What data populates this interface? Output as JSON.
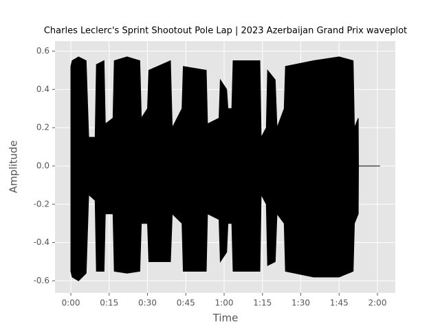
{
  "chart_data": {
    "type": "area",
    "title": "Charles Leclerc's Sprint Shootout Pole Lap | 2023 Azerbaijan Grand Prix waveplot",
    "xlabel": "Time",
    "ylabel": "Amplitude",
    "x": [
      0,
      0.5,
      3,
      6,
      7,
      9.5,
      10,
      13,
      13.5,
      16.5,
      17,
      22,
      27,
      27.6,
      30,
      30.5,
      39,
      39.7,
      43.5,
      44,
      53,
      53.5,
      58,
      58.5,
      61,
      61.5,
      63,
      63.5,
      74,
      74.5,
      76.5,
      77,
      80,
      80.7,
      83.5,
      84,
      95,
      105,
      110.5,
      111,
      112.5,
      112.6,
      121
    ],
    "series": [
      {
        "name": "upper",
        "color": "#000000",
        "values": [
          0.52,
          0.55,
          0.57,
          0.55,
          0.15,
          0.15,
          0.53,
          0.55,
          0.22,
          0.25,
          0.55,
          0.57,
          0.55,
          0.25,
          0.3,
          0.5,
          0.55,
          0.2,
          0.3,
          0.52,
          0.5,
          0.22,
          0.25,
          0.45,
          0.4,
          0.3,
          0.3,
          0.55,
          0.55,
          0.15,
          0.2,
          0.5,
          0.45,
          0.2,
          0.3,
          0.52,
          0.55,
          0.57,
          0.55,
          0.2,
          0.25,
          0,
          0
        ]
      },
      {
        "name": "lower",
        "color": "#000000",
        "values": [
          -0.55,
          -0.58,
          -0.6,
          -0.56,
          -0.15,
          -0.18,
          -0.55,
          -0.55,
          -0.25,
          -0.25,
          -0.55,
          -0.56,
          -0.55,
          -0.3,
          -0.3,
          -0.5,
          -0.5,
          -0.25,
          -0.3,
          -0.55,
          -0.55,
          -0.25,
          -0.28,
          -0.5,
          -0.45,
          -0.3,
          -0.3,
          -0.55,
          -0.55,
          -0.15,
          -0.2,
          -0.52,
          -0.5,
          -0.25,
          -0.3,
          -0.55,
          -0.58,
          -0.58,
          -0.55,
          -0.3,
          -0.25,
          0,
          0
        ]
      }
    ],
    "xlim": [
      -6.2,
      127
    ],
    "xticks": [
      {
        "value": 0,
        "label": "0:00"
      },
      {
        "value": 15,
        "label": "0:15"
      },
      {
        "value": 30,
        "label": "0:30"
      },
      {
        "value": 45,
        "label": "0:45"
      },
      {
        "value": 60,
        "label": "1:00"
      },
      {
        "value": 75,
        "label": "1:15"
      },
      {
        "value": 90,
        "label": "1:30"
      },
      {
        "value": 105,
        "label": "1:45"
      },
      {
        "value": 120,
        "label": "2:00"
      }
    ],
    "ylim": [
      -0.663,
      0.652
    ],
    "yticks": [
      -0.6,
      -0.4,
      -0.2,
      {
        "value": 0,
        "label": "0.0"
      },
      0.2,
      0.4,
      0.6
    ],
    "grid": true
  }
}
